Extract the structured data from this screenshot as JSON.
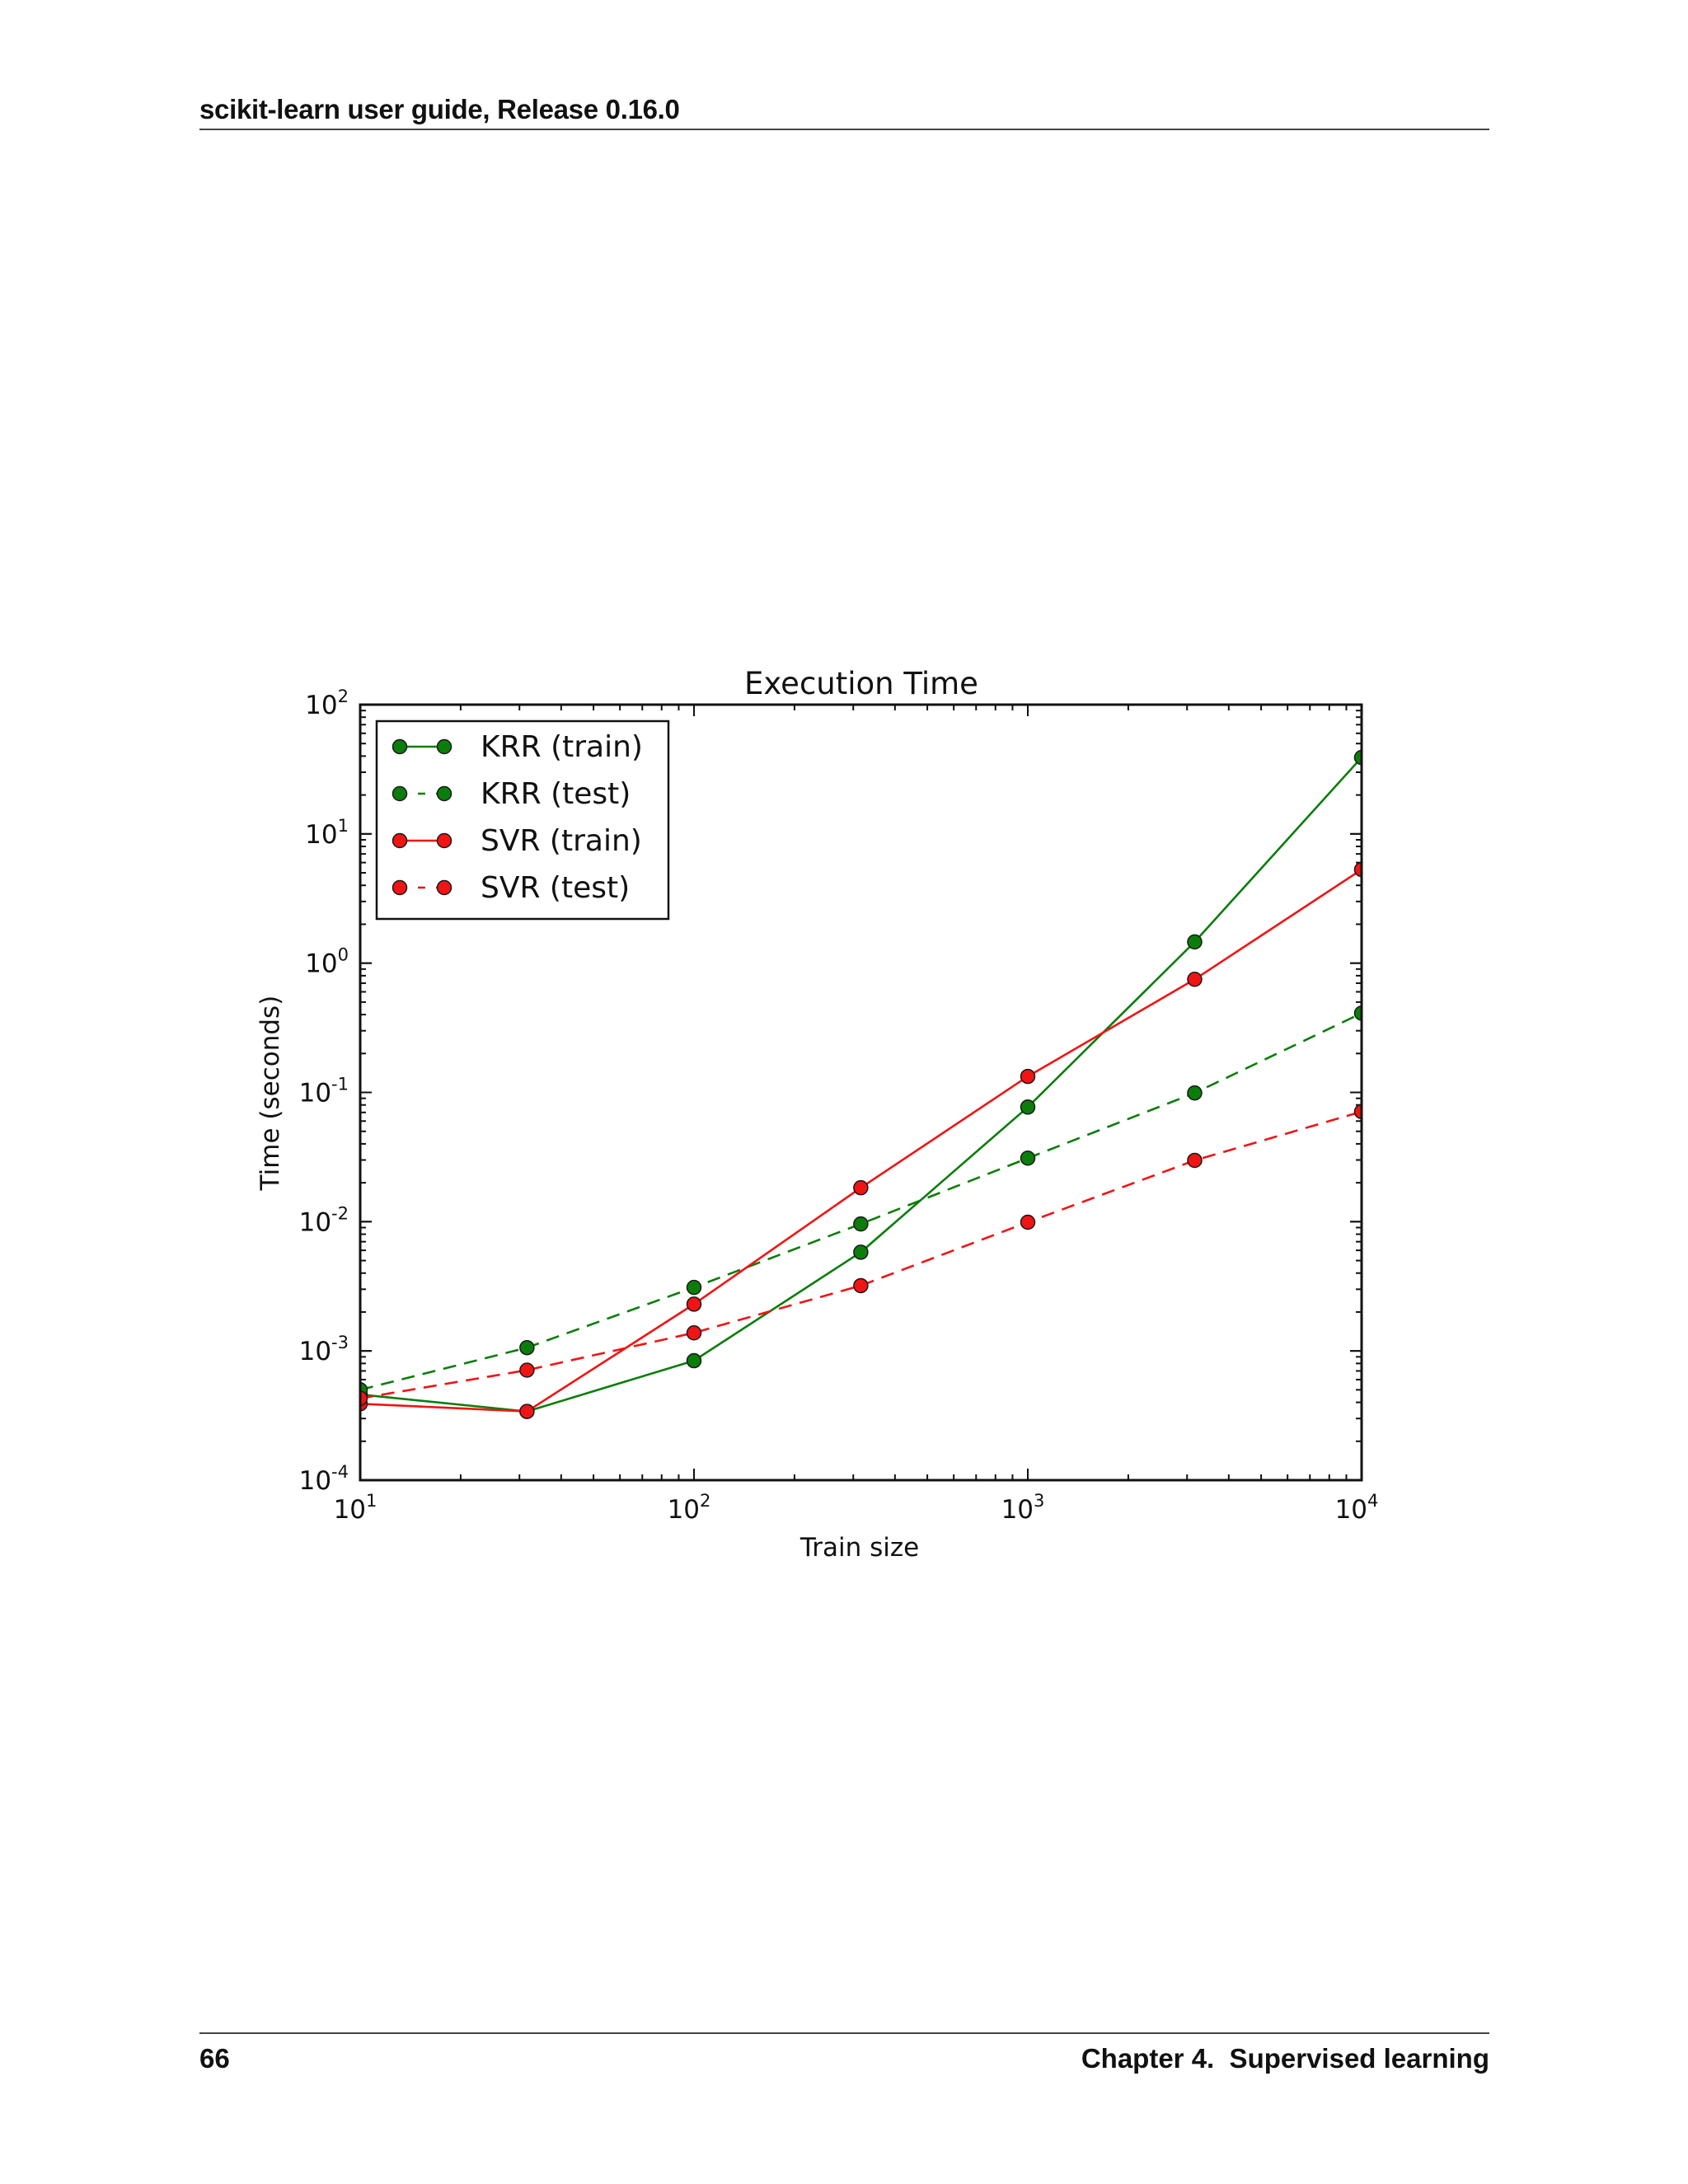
{
  "page": {
    "header": "scikit-learn user guide, Release 0.16.0",
    "footer_page_number": "66",
    "footer_chapter": "Chapter 4.  Supervised learning"
  },
  "colors": {
    "krr": "#0b7d0b",
    "svr": "#f01414",
    "axis": "#111111"
  },
  "chart_data": {
    "type": "line",
    "title": "Execution Time",
    "xlabel": "Train size",
    "ylabel": "Time (seconds)",
    "xscale": "log",
    "yscale": "log",
    "xlim": [
      10,
      10000
    ],
    "ylim": [
      0.0001,
      100
    ],
    "x_ticks": [
      {
        "base": "10",
        "exp": "1",
        "value": 10
      },
      {
        "base": "10",
        "exp": "2",
        "value": 100
      },
      {
        "base": "10",
        "exp": "3",
        "value": 1000
      },
      {
        "base": "10",
        "exp": "4",
        "value": 10000
      }
    ],
    "y_ticks": [
      {
        "base": "10",
        "exp": "-4",
        "value": 0.0001
      },
      {
        "base": "10",
        "exp": "-3",
        "value": 0.001
      },
      {
        "base": "10",
        "exp": "-2",
        "value": 0.01
      },
      {
        "base": "10",
        "exp": "-1",
        "value": 0.1
      },
      {
        "base": "10",
        "exp": "0",
        "value": 1
      },
      {
        "base": "10",
        "exp": "1",
        "value": 10
      },
      {
        "base": "10",
        "exp": "2",
        "value": 100
      }
    ],
    "grid": false,
    "legend_position": "upper left",
    "x": [
      10,
      31.6,
      100,
      316,
      1000,
      3162,
      10000
    ],
    "series": [
      {
        "name": "KRR (train)",
        "color": "#0b7d0b",
        "linestyle": "solid",
        "marker": "o",
        "values": [
          0.00046,
          0.00034,
          0.00084,
          0.0058,
          0.077,
          1.46,
          39
        ]
      },
      {
        "name": "KRR (test)",
        "color": "#0b7d0b",
        "linestyle": "dashed",
        "marker": "o",
        "values": [
          0.0005,
          0.00106,
          0.0031,
          0.0096,
          0.031,
          0.099,
          0.41
        ]
      },
      {
        "name": "SVR (train)",
        "color": "#f01414",
        "linestyle": "solid",
        "marker": "o",
        "values": [
          0.00039,
          0.00034,
          0.0023,
          0.0183,
          0.133,
          0.75,
          5.3
        ]
      },
      {
        "name": "SVR (test)",
        "color": "#f01414",
        "linestyle": "dashed",
        "marker": "o",
        "values": [
          0.00043,
          0.00071,
          0.00138,
          0.0032,
          0.0099,
          0.0298,
          0.071
        ]
      }
    ]
  }
}
